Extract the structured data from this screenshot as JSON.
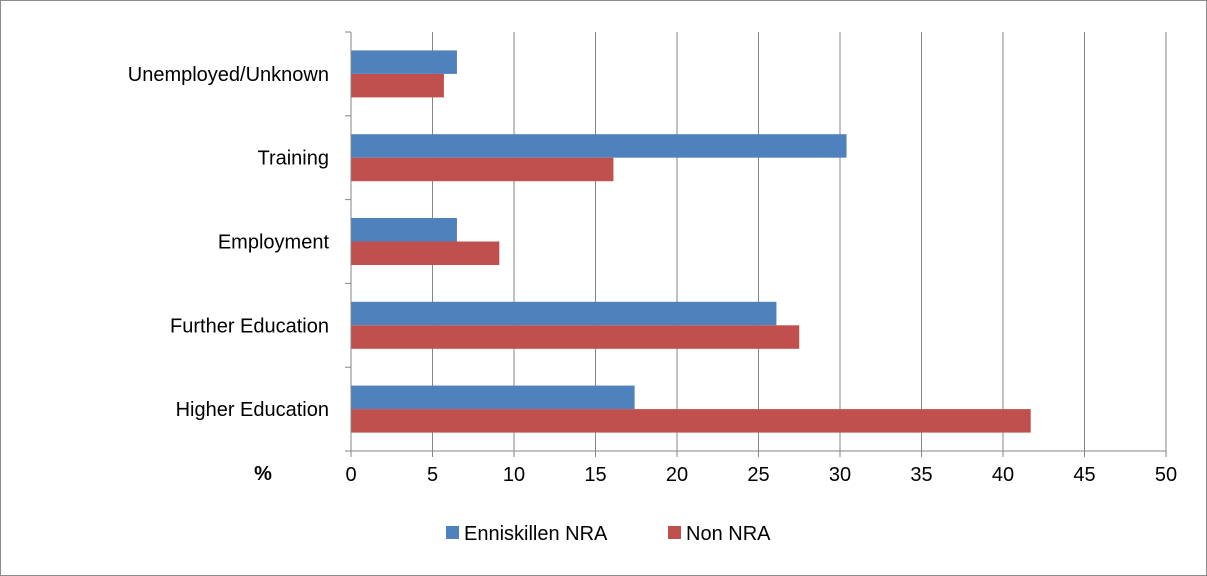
{
  "chart_data": {
    "type": "bar",
    "orientation": "horizontal",
    "categories": [
      "Higher Education",
      "Further Education",
      "Employment",
      "Training",
      "Unemployed/Unknown"
    ],
    "series": [
      {
        "name": "Enniskillen NRA",
        "color": "#4f81bd",
        "values": [
          17.4,
          26.1,
          6.5,
          30.4,
          6.5
        ]
      },
      {
        "name": "Non NRA",
        "color": "#c0504d",
        "values": [
          41.7,
          27.5,
          9.1,
          16.1,
          5.7
        ]
      }
    ],
    "xlim": [
      0,
      50
    ],
    "x_ticks": [
      0,
      5,
      10,
      15,
      20,
      25,
      30,
      35,
      40,
      45,
      50
    ],
    "xlabel": "%",
    "grid": "vertical major gridlines",
    "legend_position": "bottom"
  }
}
